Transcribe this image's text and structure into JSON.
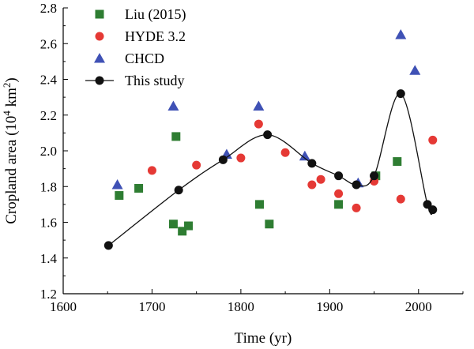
{
  "chart_data": {
    "type": "scatter",
    "title": "",
    "xlabel": "Time (yr)",
    "ylabel_parts": {
      "pre": "Cropland area (10",
      "exp": "4",
      "mid": " km",
      "exp2": "2",
      "post": ")"
    },
    "xlim": [
      1600,
      2050
    ],
    "ylim": [
      1.2,
      2.8
    ],
    "xticks": [
      1600,
      1700,
      1800,
      1900,
      2000
    ],
    "yticks": [
      1.2,
      1.4,
      1.6,
      1.8,
      2.0,
      2.2,
      2.4,
      2.6,
      2.8
    ],
    "ytick_labels": [
      "1.2",
      "1.4",
      "1.6",
      "1.8",
      "2.0",
      "2.2",
      "2.4",
      "2.6",
      "2.8"
    ],
    "legend_position": "top-left",
    "series": [
      {
        "name": "Liu (2015)",
        "marker": "square",
        "color": "#2e7d32",
        "x": [
          1663,
          1685,
          1724,
          1727,
          1734,
          1741,
          1821,
          1832,
          1910,
          1952,
          1976
        ],
        "y": [
          1.75,
          1.79,
          1.59,
          2.08,
          1.55,
          1.58,
          1.7,
          1.59,
          1.7,
          1.86,
          1.94
        ]
      },
      {
        "name": "HYDE 3.2",
        "marker": "circle",
        "color": "#e53935",
        "x": [
          1700,
          1750,
          1800,
          1820,
          1850,
          1880,
          1890,
          1910,
          1930,
          1950,
          1980,
          2016
        ],
        "y": [
          1.89,
          1.92,
          1.96,
          2.15,
          1.99,
          1.81,
          1.84,
          1.76,
          1.68,
          1.83,
          1.73,
          2.06
        ]
      },
      {
        "name": "CHCD",
        "marker": "triangle",
        "color": "#3f51b5",
        "x": [
          1661,
          1724,
          1784,
          1820,
          1872,
          1932,
          1980,
          1996
        ],
        "y": [
          1.81,
          2.25,
          1.98,
          2.25,
          1.97,
          1.82,
          2.65,
          2.45
        ]
      },
      {
        "name": "This study",
        "marker": "circle",
        "color": "#111111",
        "line": true,
        "x": [
          1651,
          1730,
          1780,
          1830,
          1880,
          1910,
          1930,
          1950,
          1980,
          2010,
          2016
        ],
        "y": [
          1.47,
          1.78,
          1.95,
          2.09,
          1.93,
          1.86,
          1.81,
          1.86,
          2.32,
          1.7,
          1.67
        ]
      }
    ]
  }
}
